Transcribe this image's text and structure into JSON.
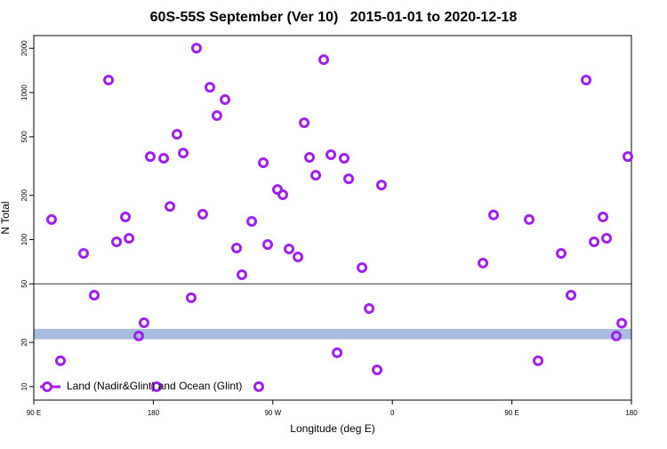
{
  "chart_data": {
    "type": "scatter",
    "title": "60S-55S September (Ver 10)   2015-01-01 to 2020-12-18",
    "x_label": "Longitude (deg E)",
    "y_label": "N Total",
    "x": [
      103.4,
      110.1,
      127.5,
      135.5,
      146.3,
      152.3,
      159,
      161.7,
      169,
      173,
      177.7,
      182.4,
      187.8,
      192.5,
      197.8,
      202.5,
      208.5,
      212.5,
      217.2,
      222.6,
      227.9,
      234,
      242.7,
      246.7,
      254.1,
      259.4,
      262.8,
      266.1,
      273.5,
      277.5,
      282.2,
      288.9,
      293.6,
      297.6,
      302.3,
      308.3,
      313.7,
      318.4,
      323.7,
      327.1,
      337.1,
      342.5,
      348.5,
      351.8,
      428.2,
      436.2,
      463,
      469.7,
      487.1,
      494.5,
      505.9,
      511.9,
      518.6,
      521.3,
      528.6,
      532.7,
      537.3
    ],
    "series": [
      {
        "name": "Land (Nadir&Glint) and Ocean (Glint)",
        "color": "#a020f0",
        "values": [
          137,
          15,
          80.6,
          41.9,
          1216,
          96.6,
          142.6,
          102,
          22.1,
          27.2,
          367,
          10,
          357,
          168,
          520,
          388,
          40.2,
          2005,
          149,
          1087,
          697,
          895,
          87.6,
          57.7,
          133,
          10,
          333,
          92.6,
          219,
          202,
          86.4,
          76.2,
          623,
          362,
          274,
          1673,
          378,
          17,
          357,
          259,
          64.5,
          34,
          13,
          235,
          69.2,
          147,
          137,
          15,
          80.6,
          41.9,
          1216,
          96.6,
          142.6,
          102,
          22.1,
          27,
          367
        ]
      }
    ],
    "xlim": [
      90,
      540
    ],
    "xticks": [
      {
        "value": 90,
        "label": "90 E"
      },
      {
        "value": 180,
        "label": "180"
      },
      {
        "value": 270,
        "label": "90 W"
      },
      {
        "value": 360,
        "label": "0"
      },
      {
        "value": 450,
        "label": "90 E"
      },
      {
        "value": 540,
        "label": "180"
      }
    ],
    "ylim": [
      8.1,
      2440
    ],
    "log_y": true,
    "yticks": [
      10,
      20,
      50,
      100,
      200,
      500,
      1000,
      2000
    ],
    "reference_line": 50,
    "band": [
      21,
      24.7
    ],
    "band_color": "#a7bde0",
    "legend_position": "lower left"
  }
}
